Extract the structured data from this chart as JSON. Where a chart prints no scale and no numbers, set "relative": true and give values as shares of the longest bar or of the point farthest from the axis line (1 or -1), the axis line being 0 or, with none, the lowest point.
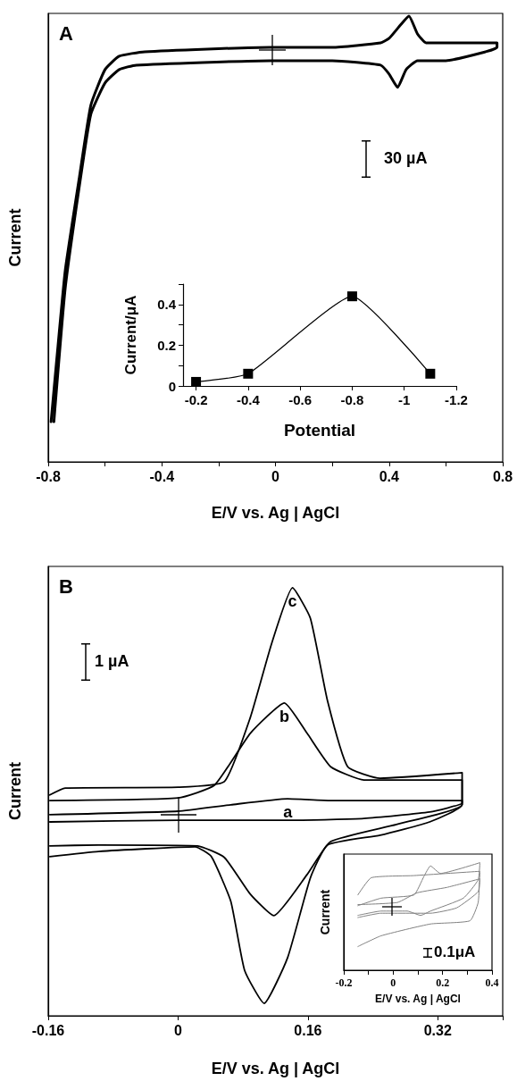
{
  "chart_data": [
    {
      "type": "line",
      "title": "A",
      "xlabel": "E/V vs. Ag | AgCl",
      "ylabel": "Current",
      "relative": true,
      "xlim": [
        -0.8,
        0.8
      ],
      "xticks": [
        -0.8,
        {
          "value": -0.6,
          "label": null
        },
        -0.4,
        {
          "value": -0.2,
          "label": null
        },
        0,
        {
          "value": 0.2,
          "label": null
        },
        0.4,
        {
          "value": 0.6,
          "label": null
        },
        0.8
      ],
      "marker": "none",
      "line_style": "solid",
      "annotations": [
        "30 µA"
      ],
      "series": [
        {
          "color": "#000000",
          "x": [
            -0.79,
            -0.77,
            -0.74,
            -0.69,
            -0.65,
            -0.6,
            -0.55,
            -0.46,
            -0.02,
            0.2,
            0.37,
            0.4,
            0.44,
            0.47,
            0.5,
            0.53,
            0.6,
            0.78,
            0.78,
            0.74,
            0.6,
            0.5,
            0.46,
            0.43,
            0.4,
            0.37,
            0.2,
            -0.02,
            -0.49,
            -0.55,
            -0.6,
            -0.65,
            -0.69,
            -0.74,
            -0.78
          ],
          "values": [
            0.09,
            0.23,
            0.43,
            0.64,
            0.8,
            0.88,
            0.91,
            0.92,
            0.93,
            0.93,
            0.94,
            0.95,
            0.98,
            1.0,
            0.96,
            0.94,
            0.94,
            0.94,
            0.93,
            0.92,
            0.9,
            0.9,
            0.88,
            0.84,
            0.87,
            0.89,
            0.9,
            0.9,
            0.89,
            0.88,
            0.85,
            0.78,
            0.62,
            0.39,
            0.09
          ]
        }
      ]
    },
    {
      "type": "line",
      "xlabel": "Potential",
      "ylabel": "Current/μA",
      "xlim": [
        -0.15,
        -1.2
      ],
      "xticks": [
        -0.2,
        -0.4,
        -0.6,
        -0.8,
        -1,
        -1.2
      ],
      "ylim": [
        0,
        0.5
      ],
      "yticks": [
        0,
        {
          "value": 0.1,
          "label": null
        },
        0.2,
        {
          "value": 0.3,
          "label": null
        },
        0.4,
        {
          "value": 0.5,
          "label": null
        }
      ],
      "marker": "square",
      "line_style": "solid",
      "x": [
        -0.2,
        -0.4,
        -0.8,
        -1.1
      ],
      "series": [
        {
          "color": "#000000",
          "values": [
            0.02,
            0.06,
            0.44,
            0.06
          ]
        }
      ]
    },
    {
      "type": "line",
      "title": "B",
      "xlabel": "E/V vs. Ag | AgCl",
      "ylabel": "Current",
      "relative": true,
      "xlim": [
        -0.16,
        0.4
      ],
      "xticks": [
        -0.16,
        0,
        0.16,
        0.32,
        {
          "value": 0.4,
          "label": null
        }
      ],
      "marker": "none",
      "line_style": "solid",
      "annotations": [
        "1 µA"
      ],
      "series": [
        {
          "name": "a",
          "color": "#000000",
          "x": [
            -0.158,
            0,
            0.065,
            0.135,
            0.188,
            0.35,
            0.35,
            0.31,
            0.229,
            0.147,
            0,
            -0.158
          ],
          "values": [
            0.47,
            0.478,
            0.493,
            0.507,
            0.503,
            0.503,
            0.497,
            0.476,
            0.461,
            0.457,
            0.457,
            0.453
          ]
        },
        {
          "name": "b",
          "color": "#000000",
          "x": [
            -0.158,
            0,
            0.045,
            0.089,
            0.131,
            0.159,
            0.188,
            0.229,
            0.35,
            0.35,
            0.269,
            0.188,
            0.159,
            0.118,
            0.089,
            0.057,
            0.024,
            -0.098,
            -0.158
          ],
          "values": [
            0.503,
            0.509,
            0.539,
            0.66,
            0.731,
            0.66,
            0.582,
            0.551,
            0.551,
            0.493,
            0.447,
            0.407,
            0.33,
            0.234,
            0.284,
            0.37,
            0.397,
            0.399,
            0.397
          ]
        },
        {
          "name": "c",
          "color": "#000000",
          "x": [
            -0.158,
            -0.139,
            0,
            0.057,
            0.089,
            0.115,
            0.141,
            0.163,
            0.184,
            0.209,
            0.249,
            0.35,
            0.35,
            0.31,
            0.249,
            0.184,
            0.163,
            0.135,
            0.106,
            0.082,
            0.065,
            0.041,
            0.021,
            -0.098,
            -0.158
          ],
          "values": [
            0.516,
            0.532,
            0.534,
            0.547,
            0.697,
            0.868,
            1.0,
            0.929,
            0.737,
            0.582,
            0.555,
            0.568,
            0.493,
            0.453,
            0.422,
            0.399,
            0.322,
            0.136,
            0.029,
            0.106,
            0.267,
            0.372,
            0.395,
            0.384,
            0.372
          ]
        }
      ]
    },
    {
      "type": "line",
      "xlabel": "E/V vs. Ag | AgCl",
      "ylabel": "Current",
      "relative": true,
      "xlim": [
        -0.2,
        0.4
      ],
      "xticks": [
        -0.2,
        {
          "value": -0.1,
          "label": null
        },
        0,
        {
          "value": 0.1,
          "label": null
        },
        0.2,
        {
          "value": 0.3,
          "label": null
        },
        0.4
      ],
      "marker": "none",
      "line_style": "solid",
      "annotations": [
        "0.1μA"
      ],
      "series": [
        {
          "color": "#808080",
          "x": [
            -0.143,
            -0.089,
            0.084,
            0.351,
            0.344,
            0.311,
            0.151,
            -0.049,
            -0.143
          ],
          "values": [
            0.7,
            0.86,
            0.88,
            0.92,
            0.63,
            0.46,
            0.43,
            0.32,
            0.22
          ]
        },
        {
          "color": "#808080",
          "x": [
            -0.143,
            -0.049,
            0.084,
            0.124,
            0.151,
            0.191,
            0.351,
            0.344,
            0.284,
            0.151,
            0.111,
            0.057,
            -0.049,
            -0.143
          ],
          "values": [
            0.6,
            0.67,
            0.7,
            0.87,
            0.97,
            0.9,
            1.0,
            0.84,
            0.67,
            0.55,
            0.51,
            0.55,
            0.55,
            0.51
          ]
        },
        {
          "color": "#808080",
          "x": [
            -0.143,
            0.017,
            0.097,
            0.217,
            0.351,
            0.344,
            0.257,
            0.151,
            -0.049,
            -0.143
          ],
          "values": [
            0.61,
            0.63,
            0.72,
            0.77,
            0.85,
            0.73,
            0.58,
            0.53,
            0.53,
            0.49
          ]
        }
      ]
    }
  ]
}
